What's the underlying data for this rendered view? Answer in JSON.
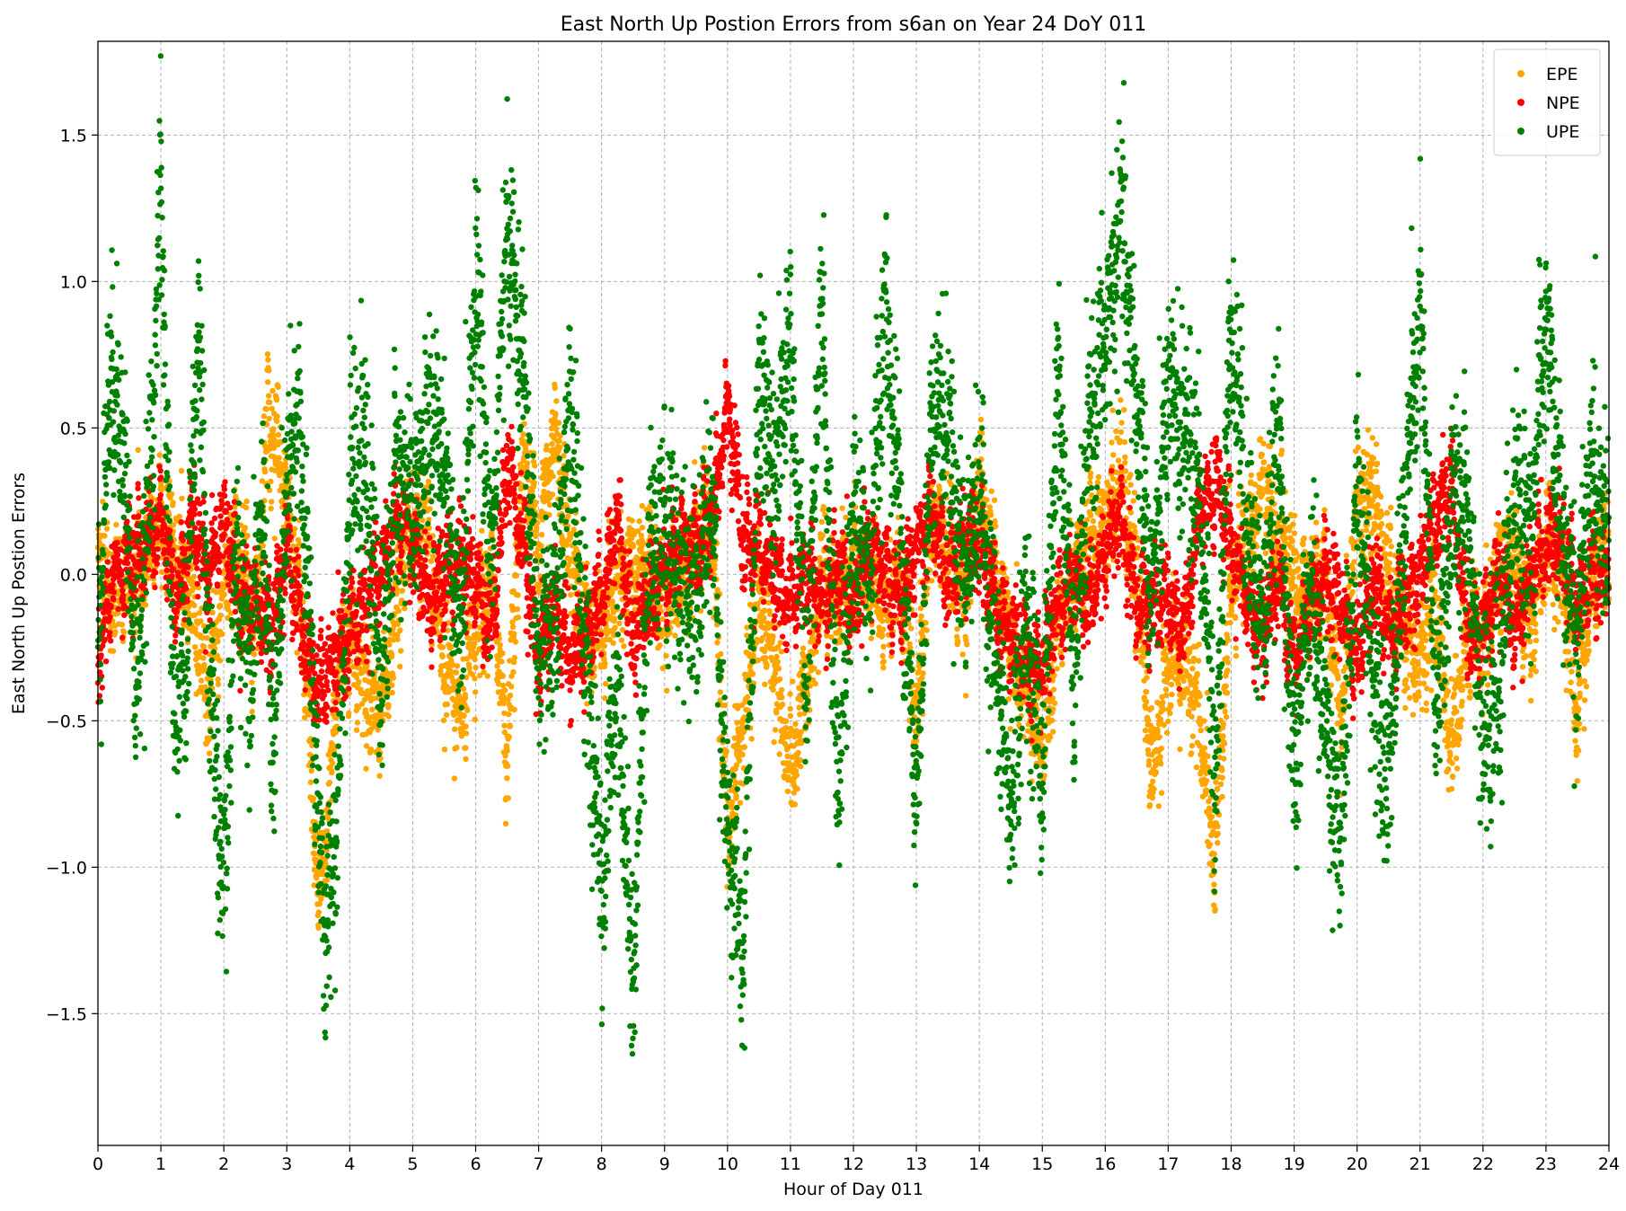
{
  "chart_data": {
    "type": "scatter",
    "title": "East North Up Postion Errors from s6an on Year 24 DoY 011",
    "xlabel": "Hour of Day 011",
    "ylabel": "East North Up Postion Errors",
    "xlim": [
      0,
      24
    ],
    "ylim": [
      -1.95,
      1.82
    ],
    "x_ticks": [
      0,
      1,
      2,
      3,
      4,
      5,
      6,
      7,
      8,
      9,
      10,
      11,
      12,
      13,
      14,
      15,
      16,
      17,
      18,
      19,
      20,
      21,
      22,
      23,
      24
    ],
    "x_tick_labels": [
      "0",
      "1",
      "2",
      "3",
      "4",
      "5",
      "6",
      "7",
      "8",
      "9",
      "10",
      "11",
      "12",
      "13",
      "14",
      "15",
      "16",
      "17",
      "18",
      "19",
      "20",
      "21",
      "22",
      "23",
      "24"
    ],
    "y_ticks": [
      -1.5,
      -1.0,
      -0.5,
      0.0,
      0.5,
      1.0,
      1.5
    ],
    "y_tick_labels": [
      "−1.5",
      "−1.0",
      "−0.5",
      "0.0",
      "0.5",
      "1.0",
      "1.5"
    ],
    "grid": true,
    "legend_position": "top-right",
    "series": [
      {
        "name": "EPE",
        "color": "#ffa500",
        "x": [
          0.0,
          0.25,
          0.5,
          0.75,
          1.0,
          1.25,
          1.5,
          1.75,
          2.0,
          2.25,
          2.5,
          2.7,
          2.9,
          3.1,
          3.3,
          3.5,
          3.65,
          3.8,
          4.0,
          4.25,
          4.5,
          4.75,
          5.0,
          5.25,
          5.5,
          5.75,
          6.0,
          6.25,
          6.5,
          6.75,
          7.0,
          7.25,
          7.5,
          7.75,
          8.0,
          8.25,
          8.5,
          8.75,
          9.0,
          9.25,
          9.5,
          9.75,
          10.0,
          10.25,
          10.5,
          10.75,
          11.0,
          11.25,
          11.5,
          11.75,
          12.0,
          12.25,
          12.5,
          12.75,
          13.0,
          13.25,
          13.5,
          13.75,
          14.0,
          14.25,
          14.5,
          14.75,
          15.0,
          15.25,
          15.5,
          15.75,
          16.0,
          16.25,
          16.5,
          16.75,
          17.0,
          17.25,
          17.5,
          17.75,
          18.0,
          18.25,
          18.5,
          18.75,
          19.0,
          19.25,
          19.5,
          19.75,
          20.0,
          20.25,
          20.5,
          20.75,
          21.0,
          21.25,
          21.5,
          21.75,
          22.0,
          22.25,
          22.5,
          22.75,
          23.0,
          23.25,
          23.5,
          23.75,
          24.0
        ],
        "y": [
          0.1,
          -0.1,
          0.0,
          0.05,
          0.2,
          0.1,
          -0.1,
          -0.4,
          0.0,
          0.1,
          -0.2,
          0.55,
          0.4,
          0.1,
          -0.3,
          -1.1,
          -0.9,
          -0.3,
          -0.2,
          -0.4,
          -0.5,
          -0.1,
          0.2,
          0.1,
          -0.3,
          -0.5,
          -0.2,
          0.0,
          -0.6,
          0.4,
          0.1,
          0.5,
          0.1,
          -0.2,
          -0.2,
          0.0,
          0.0,
          0.05,
          -0.1,
          0.0,
          0.1,
          0.2,
          -0.9,
          -0.5,
          -0.1,
          -0.3,
          -0.7,
          -0.4,
          0.0,
          -0.1,
          0.05,
          0.0,
          -0.1,
          0.0,
          -0.5,
          0.2,
          0.1,
          -0.1,
          0.3,
          0.0,
          -0.2,
          -0.4,
          -0.6,
          -0.2,
          0.0,
          0.1,
          0.2,
          0.3,
          0.0,
          -0.7,
          -0.3,
          -0.3,
          -0.5,
          -1.0,
          0.0,
          0.1,
          0.3,
          0.1,
          0.0,
          -0.1,
          0.0,
          -0.5,
          0.2,
          0.3,
          0.0,
          -0.2,
          -0.3,
          -0.1,
          -0.6,
          -0.2,
          -0.2,
          0.0,
          0.1,
          -0.2,
          0.1,
          0.0,
          -0.5,
          0.0,
          0.1
        ],
        "point_count": 7000
      },
      {
        "name": "NPE",
        "color": "#ff0000",
        "x": [
          0.0,
          0.25,
          0.5,
          0.75,
          1.0,
          1.25,
          1.5,
          1.75,
          2.0,
          2.25,
          2.5,
          2.75,
          3.0,
          3.25,
          3.5,
          3.75,
          4.0,
          4.25,
          4.5,
          4.75,
          5.0,
          5.25,
          5.5,
          5.75,
          6.0,
          6.25,
          6.5,
          6.75,
          7.0,
          7.25,
          7.5,
          7.75,
          8.0,
          8.25,
          8.5,
          8.75,
          9.0,
          9.25,
          9.5,
          9.75,
          10.0,
          10.25,
          10.5,
          10.75,
          11.0,
          11.25,
          11.5,
          11.75,
          12.0,
          12.25,
          12.5,
          12.75,
          13.0,
          13.25,
          13.5,
          13.75,
          14.0,
          14.25,
          14.5,
          14.75,
          15.0,
          15.25,
          15.5,
          15.75,
          16.0,
          16.25,
          16.5,
          16.75,
          17.0,
          17.25,
          17.5,
          17.75,
          18.0,
          18.25,
          18.5,
          18.75,
          19.0,
          19.25,
          19.5,
          19.75,
          20.0,
          20.25,
          20.5,
          20.75,
          21.0,
          21.25,
          21.5,
          21.75,
          22.0,
          22.25,
          22.5,
          22.75,
          23.0,
          23.25,
          23.5,
          23.75,
          24.0
        ],
        "y": [
          -0.3,
          0.0,
          0.05,
          0.1,
          0.2,
          -0.1,
          0.2,
          0.0,
          0.2,
          -0.1,
          -0.1,
          -0.2,
          0.1,
          -0.2,
          -0.4,
          -0.3,
          -0.2,
          -0.1,
          0.0,
          0.2,
          0.1,
          -0.1,
          0.0,
          0.05,
          0.0,
          -0.2,
          0.4,
          0.1,
          -0.3,
          -0.1,
          -0.3,
          -0.2,
          -0.1,
          0.2,
          -0.2,
          -0.1,
          0.0,
          0.1,
          0.1,
          0.2,
          0.6,
          0.1,
          0.1,
          0.0,
          -0.1,
          0.0,
          -0.1,
          0.0,
          -0.1,
          0.1,
          0.0,
          -0.1,
          0.1,
          0.2,
          0.0,
          0.1,
          0.1,
          -0.1,
          -0.2,
          -0.3,
          -0.3,
          -0.1,
          0.0,
          -0.1,
          0.1,
          0.2,
          -0.1,
          -0.1,
          -0.1,
          -0.2,
          0.2,
          0.3,
          0.1,
          -0.1,
          -0.2,
          0.0,
          -0.3,
          -0.1,
          0.0,
          -0.1,
          -0.3,
          0.0,
          -0.2,
          -0.1,
          0.0,
          0.2,
          0.3,
          -0.2,
          -0.2,
          0.0,
          -0.2,
          0.0,
          0.1,
          0.1,
          -0.1,
          0.0,
          0.0
        ],
        "point_count": 7000
      },
      {
        "name": "UPE",
        "color": "#008000",
        "x": [
          0.0,
          0.2,
          0.4,
          0.6,
          0.8,
          1.0,
          1.2,
          1.4,
          1.6,
          1.8,
          2.0,
          2.2,
          2.4,
          2.6,
          2.8,
          3.0,
          3.2,
          3.4,
          3.6,
          3.8,
          4.0,
          4.25,
          4.5,
          4.75,
          5.0,
          5.25,
          5.5,
          5.75,
          6.0,
          6.25,
          6.5,
          6.75,
          7.0,
          7.25,
          7.5,
          7.75,
          8.0,
          8.25,
          8.5,
          8.75,
          9.0,
          9.25,
          9.5,
          9.75,
          10.0,
          10.25,
          10.5,
          10.75,
          11.0,
          11.25,
          11.5,
          11.75,
          12.0,
          12.25,
          12.5,
          12.75,
          13.0,
          13.25,
          13.5,
          13.75,
          14.0,
          14.25,
          14.5,
          14.75,
          15.0,
          15.25,
          15.5,
          15.75,
          16.0,
          16.25,
          16.5,
          16.75,
          17.0,
          17.25,
          17.5,
          17.75,
          18.0,
          18.25,
          18.5,
          18.75,
          19.0,
          19.25,
          19.5,
          19.75,
          20.0,
          20.25,
          20.5,
          20.75,
          21.0,
          21.25,
          21.5,
          21.75,
          22.0,
          22.25,
          22.5,
          22.75,
          23.0,
          23.25,
          23.5,
          23.75,
          24.0
        ],
        "y": [
          -0.2,
          0.7,
          0.5,
          -0.4,
          0.2,
          1.3,
          -0.5,
          -0.3,
          0.9,
          -0.5,
          -1.1,
          0.1,
          -0.3,
          0.2,
          -0.6,
          0.3,
          0.5,
          -0.3,
          -1.3,
          -0.8,
          0.3,
          0.4,
          -0.4,
          0.4,
          0.2,
          0.5,
          0.4,
          -0.3,
          1.1,
          0.0,
          1.2,
          0.7,
          -0.3,
          -0.2,
          0.6,
          -0.3,
          -1.1,
          -0.3,
          -1.4,
          0.1,
          0.2,
          0.0,
          -0.1,
          0.3,
          -0.9,
          -1.3,
          0.7,
          0.3,
          0.8,
          -0.4,
          0.9,
          -0.8,
          0.2,
          0.0,
          0.9,
          0.2,
          -0.8,
          0.6,
          0.5,
          0.0,
          0.3,
          -0.3,
          -0.8,
          -0.1,
          -0.7,
          0.7,
          -0.4,
          0.5,
          0.8,
          1.2,
          0.6,
          -0.1,
          0.6,
          0.5,
          0.3,
          -0.7,
          0.9,
          0.2,
          -0.2,
          0.5,
          -0.7,
          0.0,
          -0.5,
          -0.9,
          0.3,
          -0.3,
          -0.7,
          0.2,
          0.9,
          -0.5,
          0.2,
          0.3,
          -0.6,
          -0.4,
          0.3,
          0.1,
          0.9,
          0.1,
          -0.2,
          0.4,
          0.1
        ],
        "point_count": 7000
      }
    ]
  }
}
